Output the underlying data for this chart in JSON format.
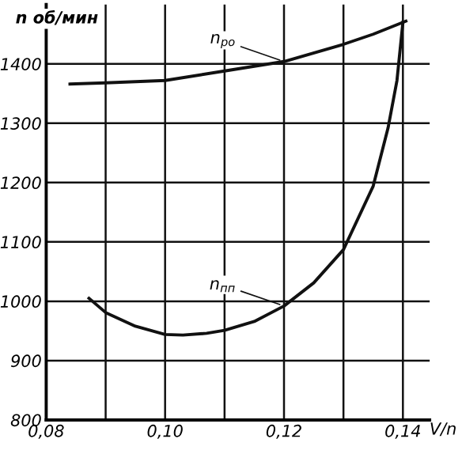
{
  "chart_data": {
    "type": "line",
    "ylabel": "n об/мин",
    "xlabel": "V/n",
    "series": [
      {
        "color": "#111111",
        "x": [
          0.084,
          0.09,
          0.1,
          0.11,
          0.12,
          0.13,
          0.135,
          0.14,
          0.1405
        ],
        "values": [
          1366,
          1368,
          1372,
          1388,
          1404,
          1433,
          1450,
          1470,
          1472
        ]
      },
      {
        "color": "#111111",
        "x": [
          0.0872,
          0.09,
          0.095,
          0.1,
          0.103,
          0.107,
          0.11,
          0.115,
          0.12,
          0.125,
          0.13,
          0.135,
          0.1375,
          0.139,
          0.14
        ],
        "values": [
          1005,
          981,
          958,
          944,
          943,
          946,
          951,
          966,
          992,
          1031,
          1087,
          1194,
          1292,
          1372,
          1470
        ]
      }
    ],
    "annotations": [
      {
        "text": "n$_{ро}$",
        "x": 0.12,
        "y": 1404
      },
      {
        "text": "n$_{пп}$",
        "x": 0.12,
        "y": 992
      }
    ],
    "xlim": [
      0.08,
      0.1445
    ],
    "ylim": [
      800,
      1500
    ],
    "xticks": [
      {
        "value": 0.08,
        "label": "0,08"
      },
      {
        "value": 0.09,
        "label": null
      },
      {
        "value": 0.1,
        "label": "0,10"
      },
      {
        "value": 0.11,
        "label": null
      },
      {
        "value": 0.12,
        "label": "0,12"
      },
      {
        "value": 0.13,
        "label": null
      },
      {
        "value": 0.14,
        "label": "0,14"
      }
    ],
    "yticks": [
      800,
      900,
      1000,
      1100,
      1200,
      1300,
      1400
    ],
    "grid": true,
    "marker": "none",
    "line_style": "solid",
    "legend": false
  }
}
